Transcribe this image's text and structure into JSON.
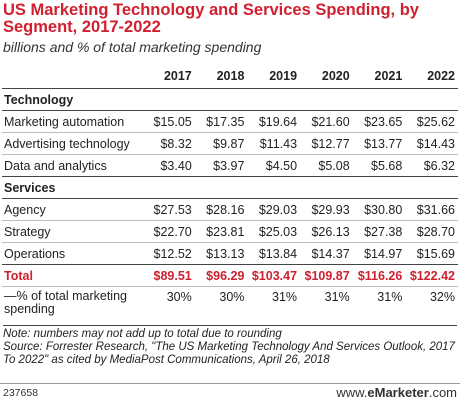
{
  "chart_data": {
    "type": "table",
    "title": "US Marketing Technology and Services Spending, by Segment, 2017-2022",
    "subtitle": "billions and % of total marketing spending",
    "columns": [
      "2017",
      "2018",
      "2019",
      "2020",
      "2021",
      "2022"
    ],
    "segments": [
      {
        "name": "Technology",
        "rows": [
          {
            "label": "Marketing automation",
            "values": [
              "$15.05",
              "$17.35",
              "$19.64",
              "$21.60",
              "$23.65",
              "$25.62"
            ]
          },
          {
            "label": "Advertising technology",
            "values": [
              "$8.32",
              "$9.87",
              "$11.43",
              "$12.77",
              "$13.77",
              "$14.43"
            ]
          },
          {
            "label": "Data and analytics",
            "values": [
              "$3.40",
              "$3.97",
              "$4.50",
              "$5.08",
              "$5.68",
              "$6.32"
            ]
          }
        ]
      },
      {
        "name": "Services",
        "rows": [
          {
            "label": "Agency",
            "values": [
              "$27.53",
              "$28.16",
              "$29.03",
              "$29.93",
              "$30.80",
              "$31.66"
            ]
          },
          {
            "label": "Strategy",
            "values": [
              "$22.70",
              "$23.81",
              "$25.03",
              "$26.13",
              "$27.38",
              "$28.70"
            ]
          },
          {
            "label": "Operations",
            "values": [
              "$12.52",
              "$13.13",
              "$13.84",
              "$14.37",
              "$14.97",
              "$15.69"
            ]
          }
        ]
      }
    ],
    "total": {
      "label": "Total",
      "values": [
        "$89.51",
        "$96.29",
        "$103.47",
        "$109.87",
        "$116.26",
        "$122.42"
      ]
    },
    "share": {
      "label": "—% of total marketing spending",
      "values": [
        "30%",
        "30%",
        "31%",
        "31%",
        "31%",
        "32%"
      ]
    },
    "accent_color": "#d0202f"
  },
  "notes": {
    "note": "Note: numbers may not add up to total due to rounding",
    "source": "Source: Forrester Research, \"The US Marketing Technology And Services Outlook, 2017 To 2022\" as cited by MediaPost Communications, April 26, 2018"
  },
  "footer": {
    "chart_id": "237658",
    "brand_prefix": "www.",
    "brand_name": "eMarketer",
    "brand_suffix": ".com"
  }
}
